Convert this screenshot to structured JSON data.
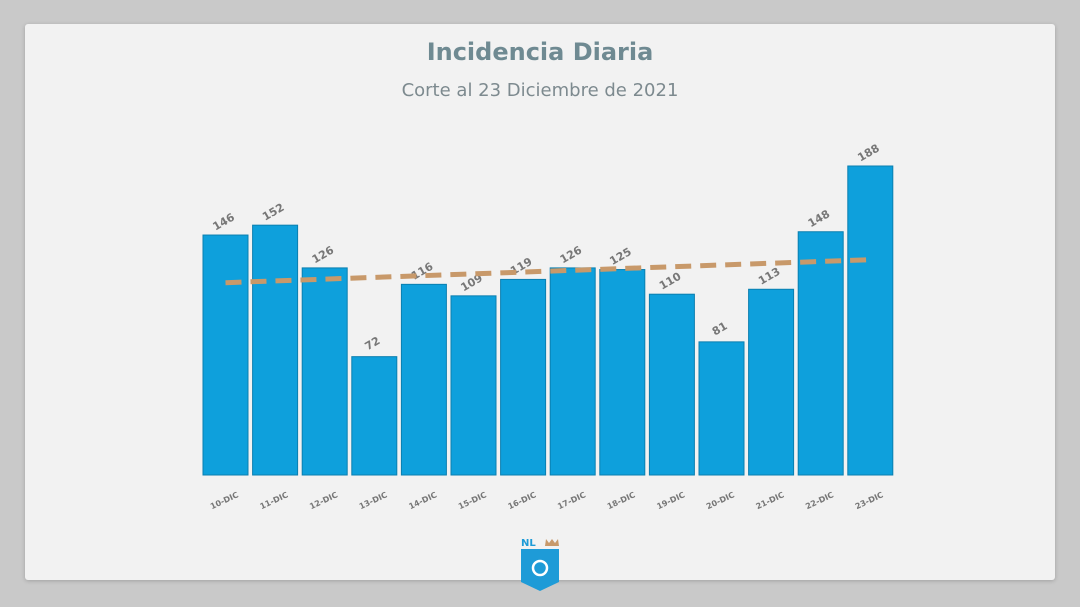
{
  "chart_data": {
    "type": "bar",
    "title": "Incidencia Diaria",
    "subtitle": "Corte al 23 Diciembre de 2021",
    "categories": [
      "10-DIC",
      "11-DIC",
      "12-DIC",
      "13-DIC",
      "14-DIC",
      "15-DIC",
      "16-DIC",
      "17-DIC",
      "18-DIC",
      "19-DIC",
      "20-DIC",
      "21-DIC",
      "22-DIC",
      "23-DIC"
    ],
    "values": [
      146,
      152,
      126,
      72,
      116,
      109,
      119,
      126,
      125,
      110,
      81,
      113,
      148,
      188
    ],
    "trendline": {
      "type": "linear",
      "start": 117,
      "end": 131,
      "style": "dashed",
      "color": "#c8996a"
    },
    "bar_color": "#0ea0dc",
    "ylim": [
      0,
      190
    ],
    "grid": false,
    "legend": "none"
  },
  "logo": {
    "text": "NL"
  }
}
